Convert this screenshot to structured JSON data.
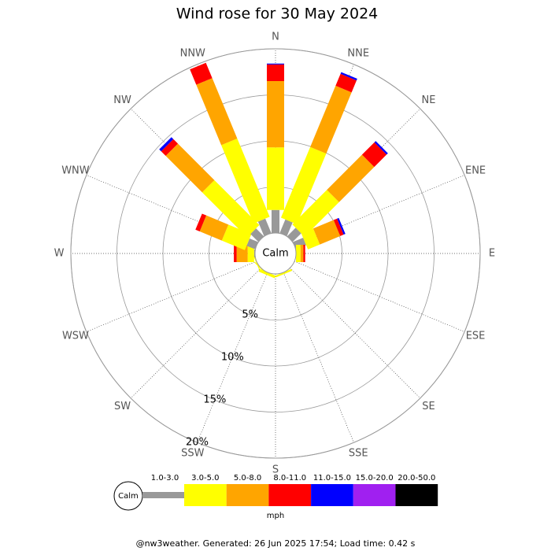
{
  "chart_data": {
    "type": "windrose",
    "title": "Wind rose for 30 May 2024",
    "directions": [
      "N",
      "NNE",
      "NE",
      "ENE",
      "E",
      "ESE",
      "SE",
      "SSE",
      "S",
      "SSW",
      "SW",
      "WSW",
      "W",
      "WNW",
      "NW",
      "NNW"
    ],
    "series": [
      {
        "name": "1.0-3.0",
        "color": "#999999",
        "values": [
          2.5,
          1.6,
          1.3,
          1.2,
          0,
          0,
          0,
          0,
          0,
          0,
          0,
          0,
          0.1,
          1.0,
          1.2,
          1.7
        ]
      },
      {
        "name": "3.0-5.0",
        "color": "#ffff00",
        "values": [
          6.8,
          8.3,
          5.3,
          1.4,
          0.5,
          0,
          0,
          0.2,
          0,
          0.3,
          0.1,
          0.1,
          0.7,
          2.7,
          6.9,
          9.2
        ]
      },
      {
        "name": "5.0-8.0",
        "color": "#ffa500",
        "values": [
          7.2,
          7.2,
          5.4,
          2.4,
          0.3,
          0,
          0,
          0,
          0,
          0,
          0,
          0,
          1.2,
          2.6,
          5.6,
          7.1
        ]
      },
      {
        "name": "8.0-11.0",
        "color": "#ff0000",
        "values": [
          1.8,
          1.4,
          1.9,
          0.4,
          0.2,
          0,
          0,
          0,
          0,
          0,
          0,
          0,
          0.3,
          0.5,
          0.7,
          1.8
        ]
      },
      {
        "name": "11.0-15.0",
        "color": "#0000ff",
        "values": [
          0.1,
          0.2,
          0.2,
          0.2,
          0,
          0,
          0,
          0,
          0,
          0,
          0,
          0,
          0,
          0,
          0.3,
          0
        ]
      },
      {
        "name": "15.0-20.0",
        "color": "#a020f0",
        "values": [
          0,
          0,
          0,
          0,
          0,
          0,
          0,
          0,
          0,
          0,
          0,
          0,
          0,
          0,
          0,
          0
        ]
      },
      {
        "name": "20.0-50.0",
        "color": "#000000",
        "values": [
          0,
          0,
          0,
          0,
          0,
          0,
          0,
          0,
          0,
          0,
          0,
          0,
          0,
          0,
          0,
          0
        ]
      }
    ],
    "rlim": [
      0,
      20
    ],
    "rticks": [
      {
        "value": 5,
        "label": "5%"
      },
      {
        "value": 10,
        "label": "10%"
      },
      {
        "value": 15,
        "label": "15%"
      },
      {
        "value": 20,
        "label": "20%"
      }
    ],
    "calm_label": "Calm",
    "unit": "mph",
    "footer": "@nw3weather. Generated: 26 Jun 2025 17:54; Load time: 0.42 s"
  }
}
